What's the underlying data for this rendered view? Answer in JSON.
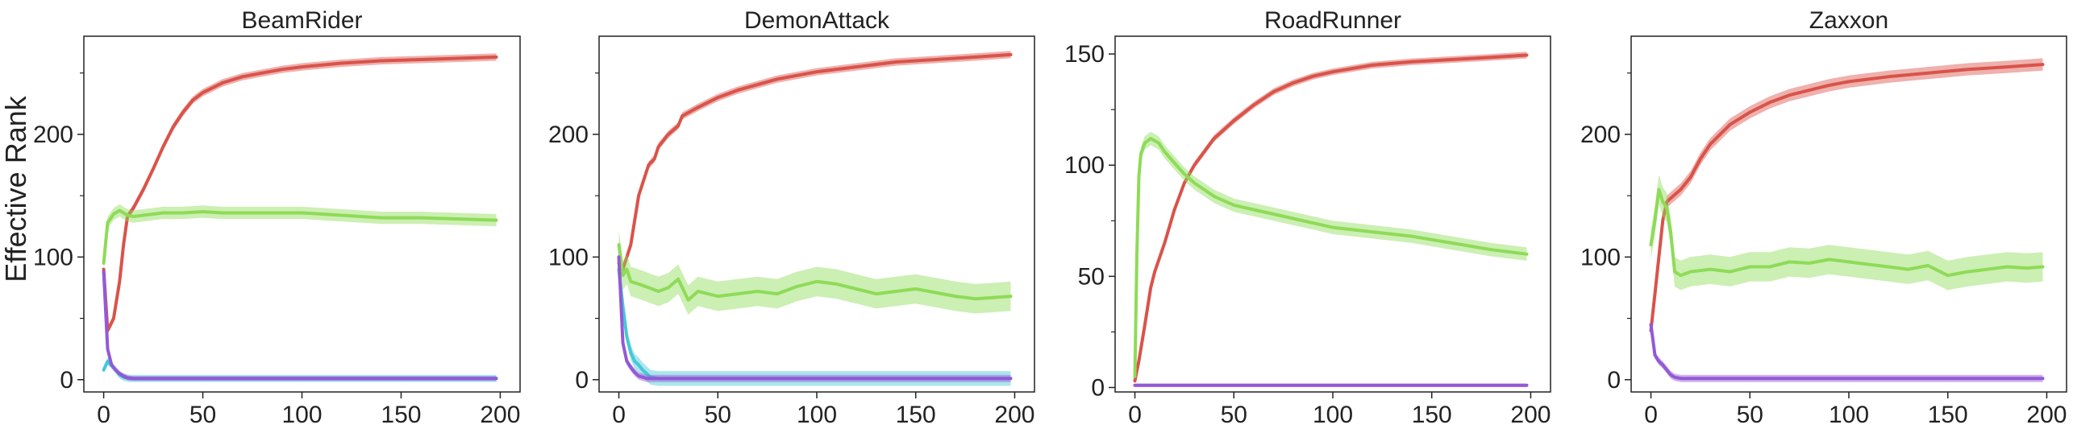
{
  "figure": {
    "ylabel": "Effective Rank"
  },
  "colors": {
    "red": "#d9534a",
    "green": "#8edb57",
    "purple": "#9359d6",
    "cyan": "#45c8d8",
    "axis": "#222222"
  },
  "chart_data": [
    {
      "type": "line",
      "title": "BeamRider",
      "xlabel": "",
      "ylabel": "Effective Rank",
      "xlim": [
        -10,
        210
      ],
      "ylim": [
        -10,
        280
      ],
      "xticks": [
        0,
        50,
        100,
        150,
        200
      ],
      "yticks": [
        0,
        100,
        200
      ],
      "grid": false,
      "series": [
        {
          "color": "red",
          "band": 3,
          "x": [
            0,
            2,
            5,
            8,
            10,
            12,
            15,
            20,
            25,
            30,
            35,
            40,
            45,
            50,
            60,
            70,
            80,
            90,
            100,
            120,
            140,
            160,
            180,
            198
          ],
          "y": [
            90,
            40,
            50,
            80,
            110,
            133,
            140,
            155,
            172,
            190,
            206,
            218,
            228,
            234,
            242,
            247,
            250,
            253,
            255,
            258,
            260,
            261,
            262,
            263
          ]
        },
        {
          "color": "green",
          "band": 5,
          "x": [
            0,
            2,
            5,
            8,
            10,
            12,
            15,
            20,
            25,
            30,
            40,
            50,
            60,
            80,
            100,
            120,
            140,
            160,
            180,
            198
          ],
          "y": [
            95,
            128,
            135,
            138,
            136,
            134,
            133,
            134,
            135,
            136,
            136,
            137,
            136,
            136,
            136,
            134,
            132,
            132,
            131,
            130
          ]
        },
        {
          "color": "cyan",
          "band": 3,
          "x": [
            0,
            2,
            5,
            8,
            10,
            13,
            20,
            50,
            100,
            150,
            198
          ],
          "y": [
            8,
            15,
            10,
            4,
            2,
            1,
            1,
            1,
            1,
            1,
            1
          ]
        },
        {
          "color": "purple",
          "band": 2,
          "x": [
            0,
            2,
            4,
            6,
            8,
            10,
            12,
            15,
            20,
            50,
            100,
            150,
            198
          ],
          "y": [
            88,
            25,
            12,
            8,
            5,
            3,
            1.5,
            1,
            1,
            1,
            1,
            1,
            1
          ]
        }
      ]
    },
    {
      "type": "line",
      "title": "DemonAttack",
      "xlabel": "",
      "ylabel": "",
      "xlim": [
        -10,
        210
      ],
      "ylim": [
        -10,
        280
      ],
      "xticks": [
        0,
        50,
        100,
        150,
        200
      ],
      "yticks": [
        0,
        100,
        200
      ],
      "grid": false,
      "series": [
        {
          "color": "red",
          "band": 3,
          "x": [
            0,
            2,
            4,
            6,
            8,
            10,
            12,
            15,
            18,
            20,
            25,
            30,
            32,
            40,
            50,
            60,
            80,
            100,
            120,
            140,
            160,
            180,
            198
          ],
          "y": [
            95,
            90,
            100,
            110,
            130,
            150,
            160,
            175,
            180,
            190,
            200,
            207,
            215,
            222,
            230,
            236,
            245,
            251,
            255,
            259,
            261,
            263,
            265
          ]
        },
        {
          "color": "green",
          "band": 12,
          "x": [
            0,
            2,
            4,
            6,
            10,
            15,
            20,
            25,
            30,
            35,
            40,
            50,
            60,
            70,
            80,
            90,
            100,
            110,
            120,
            130,
            140,
            150,
            160,
            170,
            180,
            190,
            198
          ],
          "y": [
            110,
            85,
            90,
            80,
            78,
            75,
            72,
            75,
            82,
            65,
            72,
            68,
            70,
            72,
            70,
            76,
            80,
            78,
            74,
            70,
            72,
            74,
            71,
            68,
            66,
            67,
            68
          ]
        },
        {
          "color": "cyan",
          "band": 6,
          "x": [
            0,
            2,
            4,
            6,
            8,
            10,
            12,
            14,
            16,
            20,
            50,
            100,
            150,
            198
          ],
          "y": [
            90,
            60,
            35,
            22,
            15,
            12,
            8,
            5,
            2,
            1,
            1,
            1,
            1,
            1
          ]
        },
        {
          "color": "purple",
          "band": 3,
          "x": [
            0,
            2,
            4,
            6,
            8,
            10,
            12,
            14,
            20,
            50,
            100,
            150,
            198
          ],
          "y": [
            100,
            30,
            15,
            10,
            6,
            3,
            2,
            1,
            1,
            1,
            1,
            1,
            1
          ]
        }
      ]
    },
    {
      "type": "line",
      "title": "RoadRunner",
      "xlabel": "",
      "ylabel": "",
      "xlim": [
        -10,
        210
      ],
      "ylim": [
        -2,
        158
      ],
      "xticks": [
        0,
        50,
        100,
        150,
        200
      ],
      "yticks": [
        0,
        50,
        100,
        150
      ],
      "grid": false,
      "series": [
        {
          "color": "red",
          "band": 1.5,
          "x": [
            0,
            2,
            5,
            8,
            10,
            15,
            20,
            25,
            30,
            40,
            50,
            60,
            70,
            80,
            90,
            100,
            120,
            140,
            160,
            180,
            198
          ],
          "y": [
            3,
            12,
            28,
            45,
            52,
            65,
            80,
            92,
            100,
            112,
            120,
            127,
            133,
            137,
            140,
            142,
            145,
            146.5,
            147.5,
            148.5,
            149.5
          ]
        },
        {
          "color": "green",
          "band": 3,
          "x": [
            0,
            1,
            2,
            3,
            5,
            8,
            12,
            15,
            20,
            25,
            30,
            40,
            50,
            60,
            80,
            100,
            120,
            140,
            160,
            180,
            198
          ],
          "y": [
            5,
            60,
            95,
            105,
            110,
            112,
            110,
            106,
            101,
            96,
            92,
            86,
            82,
            80,
            76,
            72,
            70,
            68,
            65,
            62,
            60
          ]
        },
        {
          "color": "purple",
          "band": 0.8,
          "x": [
            0,
            50,
            100,
            150,
            198
          ],
          "y": [
            1,
            1,
            1,
            1,
            1
          ]
        }
      ]
    },
    {
      "type": "line",
      "title": "Zaxxon",
      "xlabel": "",
      "ylabel": "",
      "xlim": [
        -10,
        210
      ],
      "ylim": [
        -10,
        280
      ],
      "xticks": [
        0,
        50,
        100,
        150,
        200
      ],
      "yticks": [
        0,
        100,
        200
      ],
      "grid": false,
      "series": [
        {
          "color": "red",
          "band": 5,
          "x": [
            0,
            2,
            4,
            6,
            8,
            10,
            15,
            20,
            25,
            30,
            40,
            50,
            60,
            70,
            80,
            90,
            100,
            120,
            140,
            160,
            180,
            198
          ],
          "y": [
            40,
            70,
            100,
            130,
            145,
            148,
            155,
            165,
            180,
            192,
            208,
            218,
            226,
            232,
            236,
            240,
            243,
            247,
            250,
            253,
            255,
            257
          ]
        },
        {
          "color": "green",
          "band": 12,
          "x": [
            0,
            2,
            4,
            6,
            8,
            10,
            12,
            15,
            20,
            30,
            40,
            50,
            60,
            70,
            80,
            90,
            100,
            110,
            120,
            130,
            140,
            150,
            160,
            170,
            180,
            190,
            198
          ],
          "y": [
            110,
            130,
            155,
            145,
            140,
            120,
            88,
            85,
            88,
            90,
            88,
            92,
            92,
            96,
            95,
            98,
            96,
            94,
            92,
            90,
            93,
            85,
            88,
            90,
            92,
            91,
            92
          ]
        },
        {
          "color": "purple",
          "band": 3,
          "x": [
            0,
            2,
            4,
            6,
            8,
            10,
            12,
            15,
            20,
            50,
            100,
            150,
            198
          ],
          "y": [
            45,
            20,
            15,
            12,
            8,
            4,
            2,
            1,
            1,
            1,
            1,
            1,
            1
          ]
        }
      ]
    }
  ]
}
